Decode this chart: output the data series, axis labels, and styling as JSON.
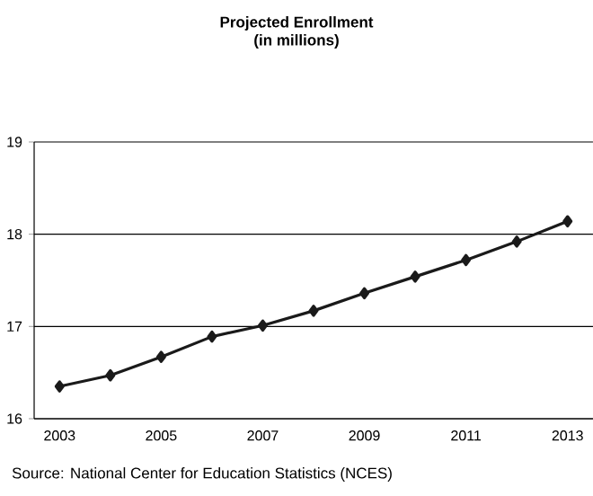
{
  "chart_data": {
    "type": "line",
    "title": "Projected Enrollment",
    "subtitle": "(in millions)",
    "categories": [
      "2003",
      null,
      "2005",
      null,
      "2007",
      null,
      "2009",
      null,
      "2011",
      null,
      "2013"
    ],
    "values": [
      16.35,
      16.47,
      16.67,
      16.89,
      17.01,
      17.17,
      17.36,
      17.54,
      17.72,
      17.92,
      18.14
    ],
    "color": "#1a1a1a",
    "marker": "diamond",
    "line_style": "solid",
    "ylim": [
      16,
      19
    ],
    "yticks": [
      16,
      17,
      18,
      19
    ],
    "grid": "y",
    "annotations": [
      "Source: National Center for Education Statistics (NCES)"
    ]
  }
}
